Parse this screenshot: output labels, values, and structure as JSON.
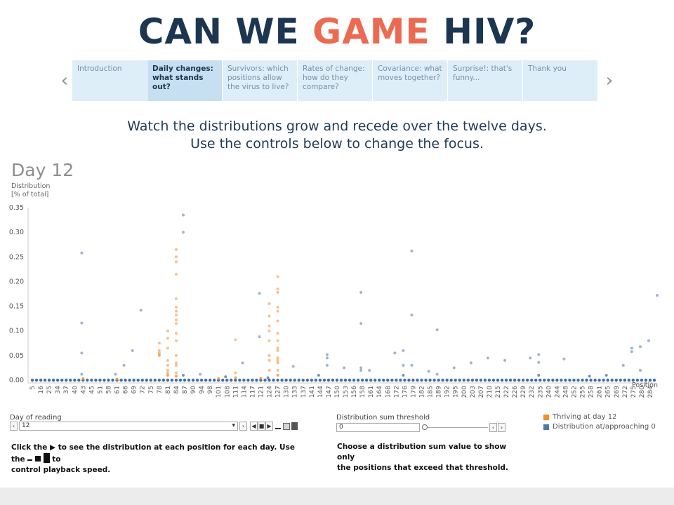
{
  "title": {
    "part1": "CAN WE ",
    "accent": "GAME",
    "part2": " HIV?"
  },
  "story": {
    "items": [
      {
        "label": "Introduction"
      },
      {
        "label": "Daily changes: what stands out?"
      },
      {
        "label": "Survivors: which positions allow the virus to live?"
      },
      {
        "label": "Rates of change: how do they compare?"
      },
      {
        "label": "Covariance: what moves together?"
      },
      {
        "label": "Surprise!: that's funny..."
      },
      {
        "label": "Thank you"
      }
    ],
    "active_index": 1,
    "prev_glyph": "‹",
    "next_glyph": "›"
  },
  "subtitle": {
    "line1": "Watch the distributions grow and recede over the twelve days.",
    "line2": "Use the controls below to change the focus."
  },
  "chart_header": {
    "day_label": "Day 12",
    "ylabel_line1": "Distribution",
    "ylabel_line2": "[% of total]"
  },
  "chart_data": {
    "type": "scatter",
    "xlabel": "Position",
    "ylabel": "Distribution [% of total]",
    "ylim": [
      0,
      0.35
    ],
    "y_ticks": [
      "0.35",
      "0.30",
      "0.25",
      "0.20",
      "0.15",
      "0.10",
      "0.05",
      "0.00"
    ],
    "x_ticks": [
      "5",
      "16",
      "25",
      "34",
      "37",
      "40",
      "43",
      "45",
      "51",
      "58",
      "61",
      "66",
      "69",
      "72",
      "75",
      "78",
      "81",
      "84",
      "87",
      "90",
      "94",
      "98",
      "101",
      "108",
      "111",
      "114",
      "117",
      "121",
      "124",
      "127",
      "130",
      "133",
      "137",
      "141",
      "144",
      "147",
      "150",
      "153",
      "156",
      "158",
      "161",
      "164",
      "168",
      "172",
      "176",
      "179",
      "182",
      "185",
      "189",
      "192",
      "195",
      "200",
      "203",
      "207",
      "210",
      "215",
      "222",
      "226",
      "229",
      "232",
      "235",
      "240",
      "244",
      "248",
      "252",
      "255",
      "258",
      "261",
      "265",
      "269",
      "272",
      "275",
      "280",
      "284"
    ],
    "series": [
      {
        "name": "Thriving at day 12",
        "color": "#f28e2b",
        "points": [
          [
            15,
            0.075
          ],
          [
            15,
            0.06
          ],
          [
            15,
            0.05
          ],
          [
            15,
            0.055
          ],
          [
            15,
            0.052
          ],
          [
            16,
            0.1
          ],
          [
            16,
            0.085
          ],
          [
            16,
            0.065
          ],
          [
            16,
            0.04
          ],
          [
            16,
            0.03
          ],
          [
            16,
            0.02
          ],
          [
            16,
            0.015
          ],
          [
            16,
            0.01
          ],
          [
            17,
            0.265
          ],
          [
            17,
            0.25
          ],
          [
            17,
            0.24
          ],
          [
            17,
            0.215
          ],
          [
            17,
            0.165
          ],
          [
            17,
            0.148
          ],
          [
            17,
            0.14
          ],
          [
            17,
            0.132
          ],
          [
            17,
            0.122
          ],
          [
            17,
            0.115
          ],
          [
            17,
            0.095
          ],
          [
            17,
            0.08
          ],
          [
            17,
            0.05
          ],
          [
            17,
            0.035
          ],
          [
            17,
            0.03
          ],
          [
            17,
            0.015
          ],
          [
            17,
            0.008
          ],
          [
            24,
            0.082
          ],
          [
            24,
            0.015
          ],
          [
            24,
            0.005
          ],
          [
            28,
            0.155
          ],
          [
            28,
            0.13
          ],
          [
            28,
            0.11
          ],
          [
            28,
            0.1
          ],
          [
            28,
            0.08
          ],
          [
            28,
            0.05
          ],
          [
            28,
            0.04
          ],
          [
            28,
            0.02
          ],
          [
            29,
            0.21
          ],
          [
            29,
            0.185
          ],
          [
            29,
            0.178
          ],
          [
            29,
            0.148
          ],
          [
            29,
            0.14
          ],
          [
            29,
            0.12
          ],
          [
            29,
            0.095
          ],
          [
            29,
            0.08
          ],
          [
            29,
            0.065
          ],
          [
            29,
            0.06
          ],
          [
            29,
            0.045
          ],
          [
            29,
            0.04
          ],
          [
            29,
            0.035
          ],
          [
            29,
            0.02
          ],
          [
            29,
            0.01
          ],
          [
            6,
            0.003
          ],
          [
            10,
            0.002
          ],
          [
            22,
            0.003
          ],
          [
            27,
            0.004
          ]
        ]
      },
      {
        "name": "Distribution at/approaching 0",
        "color": "#4e79a7",
        "points": [
          [
            6,
            0.258
          ],
          [
            6,
            0.116
          ],
          [
            6,
            0.055
          ],
          [
            6,
            0.012
          ],
          [
            10,
            0.012
          ],
          [
            12,
            0.06
          ],
          [
            13,
            0.142
          ],
          [
            11,
            0.03
          ],
          [
            18,
            0.335
          ],
          [
            18,
            0.3
          ],
          [
            18,
            0.01
          ],
          [
            20,
            0.012
          ],
          [
            23,
            0.007
          ],
          [
            25,
            0.035
          ],
          [
            27,
            0.088
          ],
          [
            27,
            0.176
          ],
          [
            28,
            0.005
          ],
          [
            31,
            0.028
          ],
          [
            34,
            0.01
          ],
          [
            35,
            0.052
          ],
          [
            35,
            0.045
          ],
          [
            35,
            0.03
          ],
          [
            37,
            0.025
          ],
          [
            39,
            0.178
          ],
          [
            39,
            0.115
          ],
          [
            39,
            0.025
          ],
          [
            39,
            0.02
          ],
          [
            40,
            0.02
          ],
          [
            43,
            0.055
          ],
          [
            44,
            0.06
          ],
          [
            44,
            0.03
          ],
          [
            44,
            0.01
          ],
          [
            45,
            0.262
          ],
          [
            45,
            0.132
          ],
          [
            45,
            0.03
          ],
          [
            47,
            0.018
          ],
          [
            48,
            0.012
          ],
          [
            48,
            0.102
          ],
          [
            50,
            0.025
          ],
          [
            52,
            0.035
          ],
          [
            54,
            0.045
          ],
          [
            56,
            0.04
          ],
          [
            59,
            0.045
          ],
          [
            60,
            0.052
          ],
          [
            60,
            0.036
          ],
          [
            60,
            0.01
          ],
          [
            63,
            0.043
          ],
          [
            66,
            0.008
          ],
          [
            68,
            0.01
          ],
          [
            70,
            0.03
          ],
          [
            71,
            0.058
          ],
          [
            71,
            0.065
          ],
          [
            72,
            0.068
          ],
          [
            72,
            0.02
          ],
          [
            73,
            0.08
          ],
          [
            74,
            0.172
          ],
          [
            76,
            0.222
          ],
          [
            76,
            0.005
          ]
        ]
      }
    ],
    "grid": false,
    "legend_position": "bottom-right"
  },
  "controls": {
    "day_label": "Day of reading",
    "day_value": "12",
    "threshold_label": "Distribution sum threshold",
    "threshold_value": "0",
    "day_prev": "‹",
    "day_next": "›",
    "dropdown_arrow": "▾",
    "play_prev": "◀",
    "play": "■",
    "play_next": "▶",
    "thr_prev": "‹",
    "thr_next": "›"
  },
  "legend": {
    "thriving": "Thriving at day 12",
    "approaching": "Distribution at/approaching 0"
  },
  "notes": {
    "left_prefix": "Click the",
    "left_mid": "to see the distribution at each position for each day. Use the",
    "left_suffix": "to",
    "left_line2": "control playback speed.",
    "play_glyph": "▶",
    "right_line1": "Choose a distribution sum value to show only",
    "right_line2": "the positions that exceed that threshold."
  }
}
